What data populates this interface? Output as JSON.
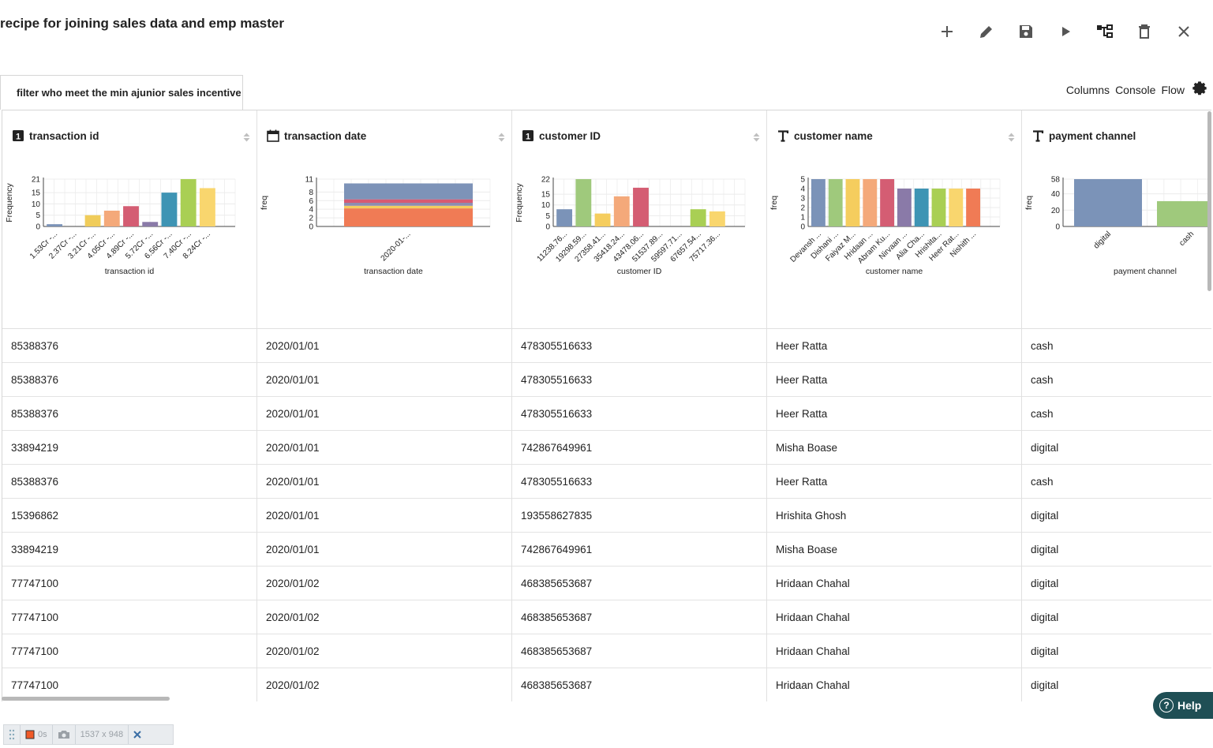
{
  "header": {
    "title": "recipe for joining sales data and emp master",
    "tools": [
      {
        "name": "add-icon",
        "interactable": true
      },
      {
        "name": "edit-icon",
        "interactable": true
      },
      {
        "name": "save-icon",
        "interactable": true
      },
      {
        "name": "play-icon",
        "interactable": true
      },
      {
        "name": "flow-tree-icon",
        "interactable": true
      },
      {
        "name": "delete-icon",
        "interactable": true
      },
      {
        "name": "close-icon",
        "interactable": true
      }
    ]
  },
  "tab": {
    "label": "filter who meet the min ajunior sales incentive"
  },
  "views": {
    "columns": "Columns",
    "console": "Console",
    "flow": "Flow"
  },
  "columns": [
    {
      "key": "transaction_id",
      "title": "transaction id",
      "type_icon": "numeric-icon"
    },
    {
      "key": "transaction_date",
      "title": "transaction date",
      "type_icon": "calendar-icon"
    },
    {
      "key": "customer_id",
      "title": "customer ID",
      "type_icon": "numeric-icon"
    },
    {
      "key": "customer_name",
      "title": "customer name",
      "type_icon": "text-icon"
    },
    {
      "key": "payment_channel",
      "title": "payment channel",
      "type_icon": "text-icon"
    }
  ],
  "rows": [
    [
      "85388376",
      "2020/01/01",
      "478305516633",
      "Heer Ratta",
      "cash"
    ],
    [
      "85388376",
      "2020/01/01",
      "478305516633",
      "Heer Ratta",
      "cash"
    ],
    [
      "85388376",
      "2020/01/01",
      "478305516633",
      "Heer Ratta",
      "cash"
    ],
    [
      "33894219",
      "2020/01/01",
      "742867649961",
      "Misha Boase",
      "digital"
    ],
    [
      "85388376",
      "2020/01/01",
      "478305516633",
      "Heer Ratta",
      "cash"
    ],
    [
      "15396862",
      "2020/01/01",
      "193558627835",
      "Hrishita Ghosh",
      "digital"
    ],
    [
      "33894219",
      "2020/01/01",
      "742867649961",
      "Misha Boase",
      "digital"
    ],
    [
      "77747100",
      "2020/01/02",
      "468385653687",
      "Hridaan Chahal",
      "digital"
    ],
    [
      "77747100",
      "2020/01/02",
      "468385653687",
      "Hridaan Chahal",
      "digital"
    ],
    [
      "77747100",
      "2020/01/02",
      "468385653687",
      "Hridaan Chahal",
      "digital"
    ],
    [
      "77747100",
      "2020/01/02",
      "468385653687",
      "Hridaan Chahal",
      "digital"
    ]
  ],
  "chart_data": [
    {
      "type": "bar",
      "column": "transaction id",
      "xlabel": "transaction id",
      "ylabel": "Frequency",
      "yticks": [
        0,
        5,
        10,
        15,
        21
      ],
      "ylim": [
        0,
        21
      ],
      "categories": [
        "1.53Cr -...",
        "2.37Cr -...",
        "3.21Cr -...",
        "4.05Cr -...",
        "4.89Cr -...",
        "5.72Cr -...",
        "6.56Cr -...",
        "7.40Cr -...",
        "8.24Cr -..."
      ],
      "values": [
        1,
        0,
        5,
        7,
        9,
        2,
        15,
        21,
        17
      ],
      "colors": [
        "#7b93b8",
        "#7b93b8",
        "#f0cc5a",
        "#f4a97a",
        "#d45d73",
        "#8a7aa8",
        "#3e94b4",
        "#a9cf54",
        "#f9d66e"
      ]
    },
    {
      "type": "stacked-bar",
      "column": "transaction date",
      "xlabel": "transaction date",
      "ylabel": "freq",
      "yticks": [
        0,
        2,
        4,
        6,
        8,
        11
      ],
      "ylim": [
        0,
        11
      ],
      "categories": [
        "2020-01-..."
      ],
      "segments": [
        {
          "value": 4.2,
          "color": "#f07b55"
        },
        {
          "value": 0.6,
          "color": "#f5cd5e"
        },
        {
          "value": 0.7,
          "color": "#8e8db0"
        },
        {
          "value": 0.8,
          "color": "#d85a72"
        },
        {
          "value": 3.7,
          "color": "#7d93b8"
        }
      ]
    },
    {
      "type": "bar",
      "column": "customer ID",
      "xlabel": "customer ID",
      "ylabel": "Frequency",
      "yticks": [
        0,
        5,
        10,
        15,
        22
      ],
      "ylim": [
        0,
        22
      ],
      "categories": [
        "11238.76...",
        "19298.59...",
        "27358.41...",
        "35418.24...",
        "43478.06...",
        "51537.89...",
        "59597.71...",
        "67657.54...",
        "75717.36..."
      ],
      "values": [
        8,
        22,
        6,
        14,
        18,
        0,
        0,
        8,
        7
      ],
      "colors": [
        "#7b93b8",
        "#9fc97c",
        "#f5cd5e",
        "#f4a97a",
        "#d45d73",
        "#8a7aa8",
        "#3e94b4",
        "#a9cf54",
        "#f9d66e"
      ]
    },
    {
      "type": "bar",
      "column": "customer name",
      "xlabel": "customer name",
      "ylabel": "freq",
      "yticks": [
        0,
        1,
        2,
        3,
        4,
        5
      ],
      "ylim": [
        0,
        5
      ],
      "categories": [
        "Devansh ...",
        "Dishani ...",
        "Faiyaz M...",
        "Hridaan ...",
        "Abram Ku...",
        "Nirvaan ...",
        "Alia Cha...",
        "Hrishita...",
        "Heer Rat...",
        "Nishith ..."
      ],
      "values": [
        5,
        5,
        5,
        5,
        5,
        4,
        4,
        4,
        4,
        4
      ],
      "colors": [
        "#7b93b8",
        "#9fc97c",
        "#f5cd5e",
        "#f4a97a",
        "#d45d73",
        "#8a7aa8",
        "#3e94b4",
        "#a9cf54",
        "#f9d66e",
        "#f07b55"
      ]
    },
    {
      "type": "bar",
      "column": "payment channel",
      "xlabel": "payment channel",
      "ylabel": "freq",
      "yticks": [
        0,
        20,
        40,
        58
      ],
      "ylim": [
        0,
        58
      ],
      "categories": [
        "digital",
        "cash"
      ],
      "values": [
        58,
        31
      ],
      "colors": [
        "#7b93b8",
        "#9fc97c"
      ]
    }
  ],
  "help": {
    "label": "Help"
  },
  "statusbar": {
    "time": "0s",
    "size": "1537 x 948"
  }
}
